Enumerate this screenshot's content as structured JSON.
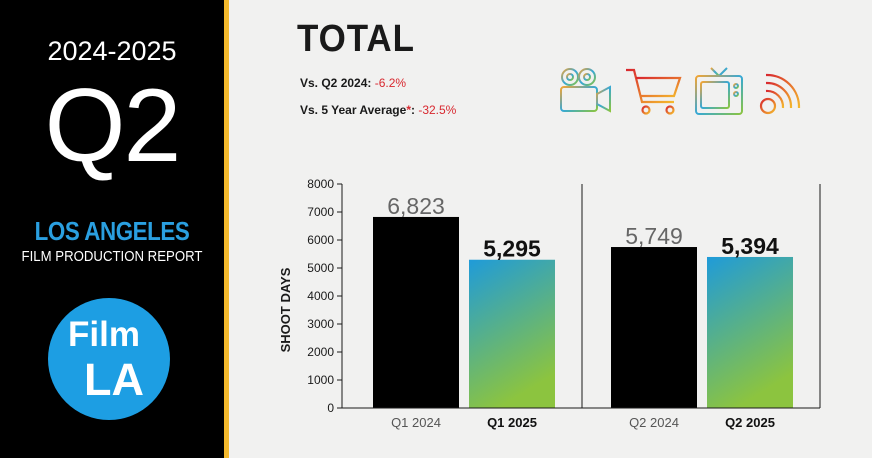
{
  "sidebar": {
    "year": "2024-2025",
    "quarter": "Q2",
    "city": "LOS ANGELES",
    "report": "FILM PRODUCTION REPORT",
    "logo_line1": "Film",
    "logo_line2": "LA"
  },
  "header": {
    "title": "TOTAL",
    "cmp1_label": "Vs. Q2 2024:",
    "cmp1_value": "-6.2%",
    "cmp2_label": "Vs. 5 Year Average",
    "cmp2_star": "*",
    "cmp2_colon": ":",
    "cmp2_value": "-32.5%"
  },
  "icons": [
    "film-camera-icon",
    "shopping-cart-icon",
    "television-icon",
    "web-signal-icon"
  ],
  "colors": {
    "black_bar": "#000000",
    "gradient_top": "#1f9bd9",
    "gradient_bottom": "#8cc43f",
    "negative": "#d8282f",
    "accent": "#2a9fe0",
    "stripe": "#f4b92d"
  },
  "chart_data": {
    "type": "bar",
    "ylabel": "SHOOT DAYS",
    "ylim": [
      0,
      8000
    ],
    "yticks": [
      0,
      1000,
      2000,
      3000,
      4000,
      5000,
      6000,
      7000,
      8000
    ],
    "ytick_labels": [
      "0",
      "1000",
      "2000",
      "3000",
      "4000",
      "5000",
      "6000",
      "7000",
      "8000"
    ],
    "categories": [
      "Q1 2024",
      "Q1 2025",
      "Q2 2024",
      "Q2 2025"
    ],
    "values": [
      6823,
      5295,
      5749,
      5394
    ],
    "value_labels": [
      "6,823",
      "5,295",
      "5,749",
      "5,394"
    ],
    "styles": [
      "black",
      "gradient",
      "black",
      "gradient"
    ],
    "grid": false
  }
}
